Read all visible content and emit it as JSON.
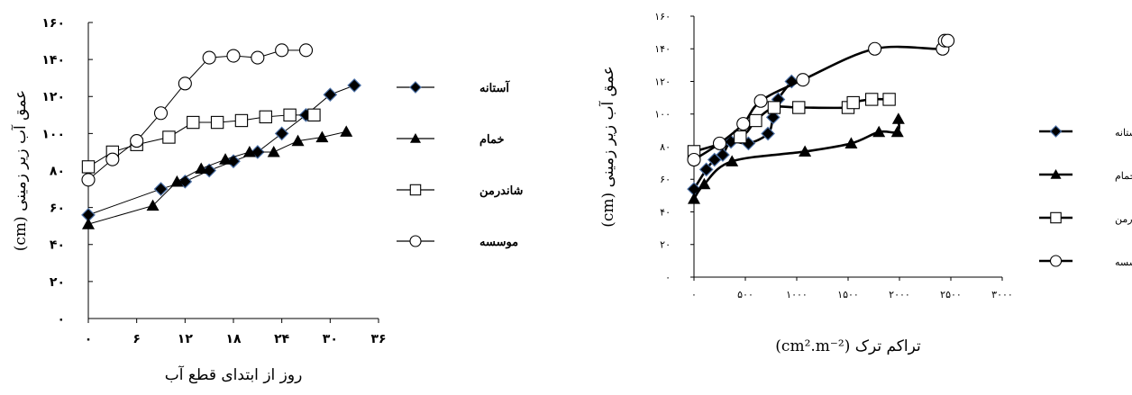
{
  "chart_data": [
    {
      "type": "scatter",
      "xlabel": "روز از ابتدای قطع آب",
      "ylabel": "عمق آب زیر زمینی (cm)",
      "xlim": [
        0,
        36
      ],
      "ylim": [
        0,
        160
      ],
      "xticks": [
        "۰",
        "۶",
        "۱۲",
        "۱۸",
        "۲۴",
        "۳۰",
        "۳۶"
      ],
      "yticks": [
        "۰",
        "۲۰",
        "۴۰",
        "۶۰",
        "۸۰",
        "۱۰۰",
        "۱۲۰",
        "۱۴۰",
        "۱۶۰"
      ],
      "xtick_values": [
        0,
        6,
        12,
        18,
        24,
        30,
        36
      ],
      "ytick_values": [
        0,
        20,
        40,
        60,
        80,
        100,
        120,
        140,
        160
      ],
      "series": [
        {
          "name": "آستانه",
          "marker": "diamond",
          "color": "#000000",
          "x": [
            0,
            9,
            12,
            15,
            18,
            21,
            24,
            27,
            30,
            33
          ],
          "y": [
            56,
            70,
            74,
            80,
            85,
            90,
            100,
            110,
            121,
            126
          ]
        },
        {
          "name": "خمام",
          "marker": "triangle",
          "color": "#000000",
          "x": [
            0,
            8,
            11,
            14,
            17,
            20,
            23,
            26,
            29,
            32
          ],
          "y": [
            51,
            61,
            74,
            81,
            86,
            90,
            90,
            96,
            98,
            101
          ]
        },
        {
          "name": "شاندرمن",
          "marker": "square",
          "color": "#000000",
          "x": [
            0,
            3,
            6,
            10,
            13,
            16,
            19,
            22,
            25,
            28
          ],
          "y": [
            82,
            90,
            94,
            98,
            106,
            106,
            107,
            109,
            110,
            110
          ]
        },
        {
          "name": "موسسه",
          "marker": "circle",
          "color": "#000000",
          "x": [
            0,
            3,
            6,
            9,
            12,
            15,
            18,
            21,
            24,
            27
          ],
          "y": [
            75,
            86,
            96,
            111,
            127,
            141,
            142,
            141,
            145,
            145
          ]
        }
      ],
      "legend": {
        "placement": "right"
      }
    },
    {
      "type": "scatter",
      "xlabel": "تراکم ترک (cm².m⁻²)",
      "ylabel": "عمق آب زیر زمینی (cm)",
      "xlim": [
        0,
        3000
      ],
      "ylim": [
        0,
        160
      ],
      "xticks": [
        "۰",
        "۵۰۰",
        "۱۰۰۰",
        "۱۵۰۰",
        "۲۰۰۰",
        "۲۵۰۰",
        "۳۰۰۰"
      ],
      "yticks": [
        "۰",
        "۲۰",
        "۴۰",
        "۶۰",
        "۸۰",
        "۱۰۰",
        "۱۲۰",
        "۱۴۰",
        "۱۶۰"
      ],
      "xtick_values": [
        0,
        500,
        1000,
        1500,
        2000,
        2500,
        3000
      ],
      "ytick_values": [
        0,
        20,
        40,
        60,
        80,
        100,
        120,
        140,
        160
      ],
      "series": [
        {
          "name": "آستانه",
          "marker": "diamond",
          "color": "#000000",
          "x": [
            0,
            120,
            200,
            280,
            360,
            530,
            720,
            770,
            820,
            950
          ],
          "y": [
            54,
            66,
            72,
            75,
            83,
            82,
            88,
            98,
            109,
            120
          ]
        },
        {
          "name": "خمام",
          "marker": "triangle",
          "color": "#000000",
          "x": [
            0,
            100,
            370,
            1080,
            1530,
            1800,
            1980,
            1990
          ],
          "y": [
            48,
            57,
            71,
            77,
            82,
            89,
            89,
            97
          ]
        },
        {
          "name": "شاندرمن",
          "marker": "square",
          "color": "#000000",
          "x": [
            0,
            450,
            600,
            780,
            1020,
            1500,
            1550,
            1730,
            1900
          ],
          "y": [
            77,
            86,
            96,
            104,
            104,
            104,
            107,
            109,
            109
          ]
        },
        {
          "name": "موسسه",
          "marker": "circle",
          "color": "#000000",
          "x": [
            0,
            250,
            480,
            650,
            1060,
            1760,
            2420,
            2440,
            2470
          ],
          "y": [
            72,
            82,
            94,
            108,
            121,
            140,
            140,
            145,
            145
          ]
        }
      ],
      "legend": {
        "placement": "right"
      }
    }
  ]
}
